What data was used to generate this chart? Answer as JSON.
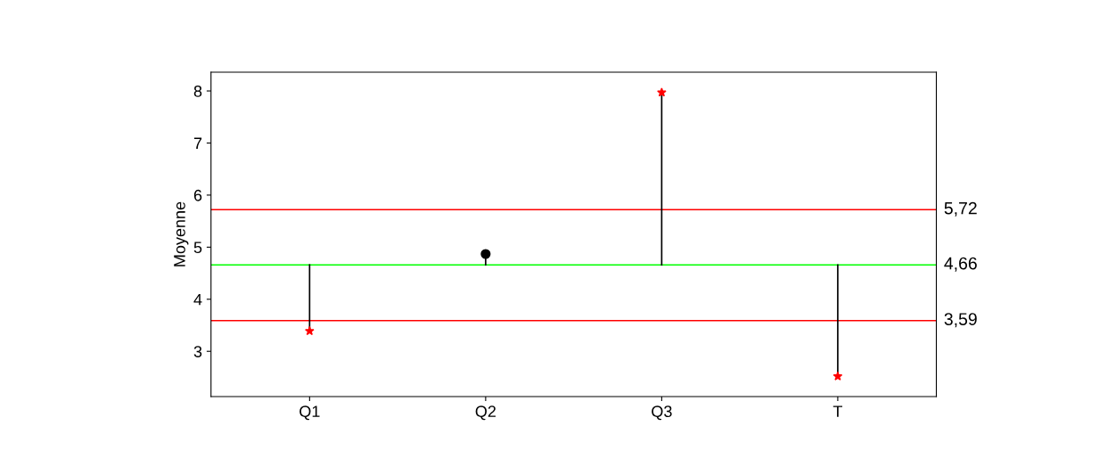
{
  "chart_data": {
    "type": "scatter",
    "ylabel": "Moyenne",
    "categories": [
      "Q1",
      "Q2",
      "Q3",
      "T"
    ],
    "series": [
      {
        "color": "#ff0000",
        "marker": "star",
        "values": [
          3.39,
          null,
          7.97,
          2.52
        ],
        "errors": [
          [
            3.39,
            4.66
          ],
          null,
          [
            4.66,
            7.97
          ],
          [
            2.52,
            4.66
          ]
        ]
      },
      {
        "color": "#000000",
        "marker": "circle",
        "values": [
          null,
          4.87,
          null,
          null
        ],
        "errors": [
          null,
          [
            4.66,
            4.87
          ],
          null,
          null
        ]
      }
    ],
    "ylim": [
      2.13,
      8.36
    ],
    "yticks": [
      3,
      4,
      5,
      6,
      7,
      8
    ],
    "ref_lines": [
      {
        "axis": "y",
        "value": 5.72,
        "label": "5,72",
        "color": "#ff0000"
      },
      {
        "axis": "y",
        "value": 4.66,
        "label": "4,66",
        "color": "#00ff00"
      },
      {
        "axis": "y",
        "value": 3.59,
        "label": "3,59",
        "color": "#ff0000"
      }
    ],
    "grid": false,
    "legend": false
  }
}
